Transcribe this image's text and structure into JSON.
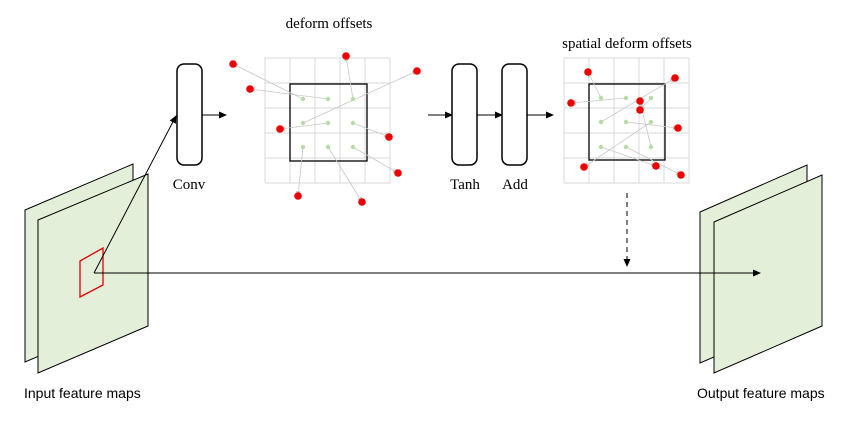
{
  "labels": {
    "deform_offsets": "deform offsets",
    "spatial_deform_offsets": "spatial deform offsets",
    "conv": "Conv",
    "tanh": "Tanh",
    "add": "Add",
    "input_feature_maps": "Input feature maps",
    "output_feature_maps": "Output feature maps"
  },
  "colors": {
    "feature_map_fill": "#e4efd9",
    "offset_point": "#ee0000",
    "sample_point": "#b5dca5",
    "receptive_field": "#e00000",
    "grid_line": "#d9d9d9",
    "offset_arrow": "#c8c8c8"
  }
}
